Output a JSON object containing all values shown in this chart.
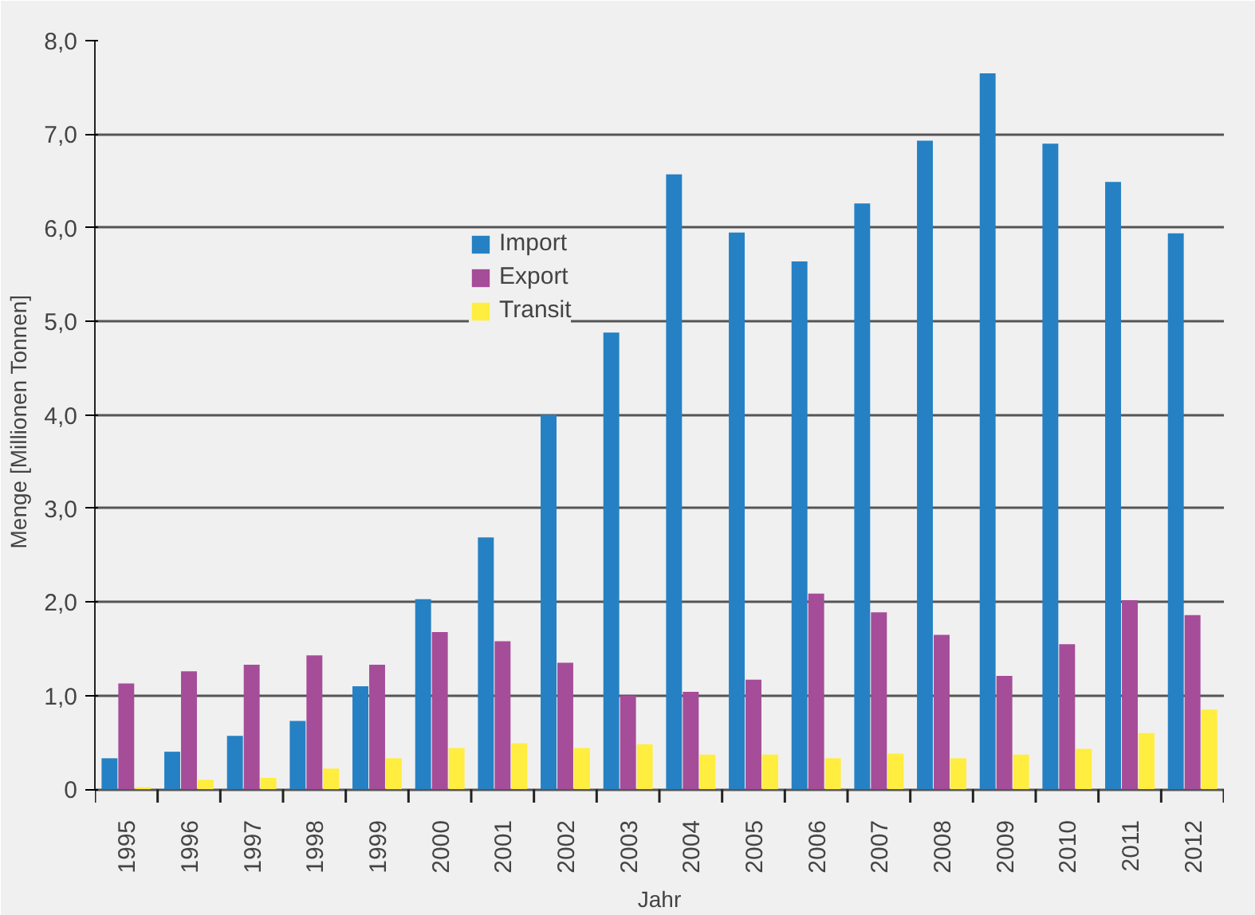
{
  "chart_data": {
    "type": "bar",
    "xlabel": "Jahr",
    "ylabel": "Menge [Millionen Tonnen]",
    "categories": [
      "1995",
      "1996",
      "1997",
      "1998",
      "1999",
      "2000",
      "2001",
      "2002",
      "2003",
      "2004",
      "2005",
      "2006",
      "2007",
      "2008",
      "2009",
      "2010",
      "2011",
      "2012"
    ],
    "series": [
      {
        "name": "Import",
        "color": "#2581c4",
        "values": [
          0.33,
          0.4,
          0.57,
          0.73,
          1.1,
          2.03,
          2.69,
          4.0,
          4.88,
          6.57,
          5.95,
          5.64,
          6.26,
          6.93,
          7.65,
          6.9,
          6.49,
          5.94
        ]
      },
      {
        "name": "Export",
        "color": "#a54d98",
        "values": [
          1.13,
          1.26,
          1.33,
          1.43,
          1.33,
          1.68,
          1.58,
          1.35,
          1.0,
          1.04,
          1.17,
          2.09,
          1.89,
          1.65,
          1.21,
          1.55,
          2.02,
          1.86
        ]
      },
      {
        "name": "Transit",
        "color": "#ffed3f",
        "values": [
          0.02,
          0.1,
          0.12,
          0.22,
          0.33,
          0.44,
          0.49,
          0.44,
          0.48,
          0.37,
          0.37,
          0.33,
          0.38,
          0.33,
          0.37,
          0.43,
          0.6,
          0.85
        ]
      }
    ],
    "ylim": [
      0,
      8
    ],
    "yticks": [
      0,
      {
        "value": 1,
        "label": "1,0"
      },
      {
        "value": 2,
        "label": "2,0"
      },
      {
        "value": 3,
        "label": "3,0"
      },
      {
        "value": 4,
        "label": "4,0"
      },
      {
        "value": 5,
        "label": "5,0"
      },
      {
        "value": 6,
        "label": "6,0"
      },
      {
        "value": 7,
        "label": "7,0"
      },
      {
        "value": 8,
        "label": "8,0"
      }
    ],
    "grid": "y",
    "legend": "top"
  }
}
